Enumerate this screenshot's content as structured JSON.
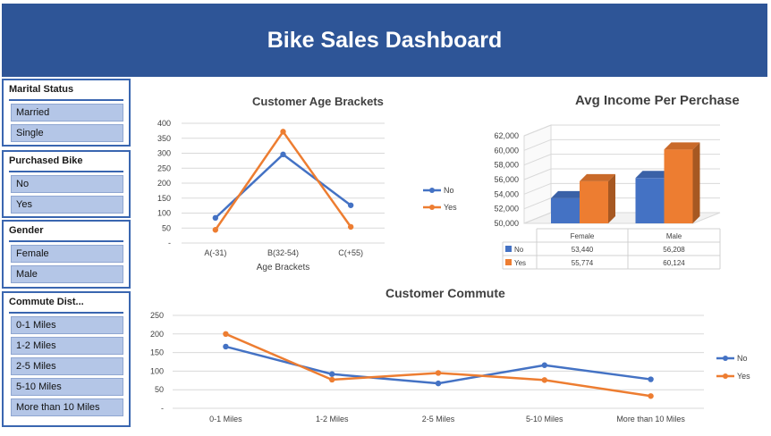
{
  "header": {
    "title": "Bike Sales Dashboard"
  },
  "slicers": [
    {
      "title": "Marital Status",
      "items": [
        "Married",
        "Single"
      ]
    },
    {
      "title": "Purchased Bike",
      "items": [
        "No",
        "Yes"
      ]
    },
    {
      "title": "Gender",
      "items": [
        "Female",
        "Male"
      ]
    },
    {
      "title": "Commute Dist...",
      "items": [
        "0-1 Miles",
        "1-2 Miles",
        "2-5 Miles",
        "5-10 Miles",
        "More than 10 Miles"
      ]
    }
  ],
  "colors": {
    "header": "#2e5597",
    "no": "#4472c4",
    "yes": "#ed7d31",
    "slicer_item": "#b4c6e7"
  },
  "chart_data": [
    {
      "type": "line",
      "title": "Customer Age Brackets",
      "xlabel": "Age Brackets",
      "ylabel": "",
      "categories": [
        "A(-31)",
        "B(32-54)",
        "C(+55)"
      ],
      "y_ticks": [
        "-",
        "50",
        "100",
        "150",
        "200",
        "250",
        "300",
        "350",
        "400"
      ],
      "ylim": [
        0,
        400
      ],
      "series": [
        {
          "name": "No",
          "values": [
            84,
            296,
            126
          ]
        },
        {
          "name": "Yes",
          "values": [
            44,
            372,
            54
          ]
        }
      ],
      "legend": "right",
      "grid": true
    },
    {
      "type": "bar",
      "title": "Avg Income Per Perchase",
      "categories": [
        "Female",
        "Male"
      ],
      "y_ticks": [
        "50,000",
        "52,000",
        "54,000",
        "56,000",
        "58,000",
        "60,000",
        "62,000"
      ],
      "ylim": [
        50000,
        62000
      ],
      "series": [
        {
          "name": "No",
          "values": [
            53440,
            56208
          ],
          "labels": [
            "53,440",
            "56,208"
          ]
        },
        {
          "name": "Yes",
          "values": [
            55774,
            60124
          ],
          "labels": [
            "55,774",
            "60,124"
          ]
        }
      ],
      "data_table": true,
      "grid": true
    },
    {
      "type": "line",
      "title": "Customer Commute",
      "categories": [
        "0-1 Miles",
        "1-2 Miles",
        "2-5 Miles",
        "5-10 Miles",
        "More than 10 Miles"
      ],
      "y_ticks": [
        "-",
        "50",
        "100",
        "150",
        "200",
        "250"
      ],
      "ylim": [
        0,
        250
      ],
      "series": [
        {
          "name": "No",
          "values": [
            166,
            92,
            67,
            116,
            78
          ]
        },
        {
          "name": "Yes",
          "values": [
            200,
            77,
            95,
            76,
            33
          ]
        }
      ],
      "legend": "right",
      "grid": true
    }
  ]
}
